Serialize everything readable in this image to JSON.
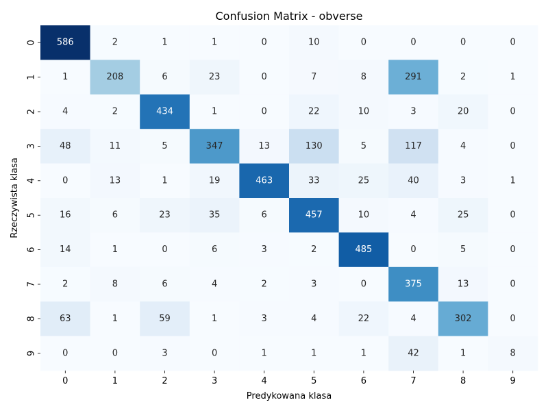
{
  "chart_data": {
    "type": "heatmap",
    "title": "Confusion Matrix - obverse",
    "xlabel": "Predykowana klasa",
    "ylabel": "Rzeczywista klasa",
    "x_categories": [
      "0",
      "1",
      "2",
      "3",
      "4",
      "5",
      "6",
      "7",
      "8",
      "9"
    ],
    "y_categories": [
      "0",
      "1",
      "2",
      "3",
      "4",
      "5",
      "6",
      "7",
      "8",
      "9"
    ],
    "colormap": "Blues",
    "colorbar": false,
    "values": [
      [
        586,
        2,
        1,
        1,
        0,
        10,
        0,
        0,
        0,
        0
      ],
      [
        1,
        208,
        6,
        23,
        0,
        7,
        8,
        291,
        2,
        1
      ],
      [
        4,
        2,
        434,
        1,
        0,
        22,
        10,
        3,
        20,
        0
      ],
      [
        48,
        11,
        5,
        347,
        13,
        130,
        5,
        117,
        4,
        0
      ],
      [
        0,
        13,
        1,
        19,
        463,
        33,
        25,
        40,
        3,
        1
      ],
      [
        16,
        6,
        23,
        35,
        6,
        457,
        10,
        4,
        25,
        0
      ],
      [
        14,
        1,
        0,
        6,
        3,
        2,
        485,
        0,
        5,
        0
      ],
      [
        2,
        8,
        6,
        4,
        2,
        3,
        0,
        375,
        13,
        0
      ],
      [
        63,
        1,
        59,
        1,
        3,
        4,
        22,
        4,
        302,
        0
      ],
      [
        0,
        0,
        3,
        0,
        1,
        1,
        1,
        42,
        1,
        8
      ]
    ]
  }
}
